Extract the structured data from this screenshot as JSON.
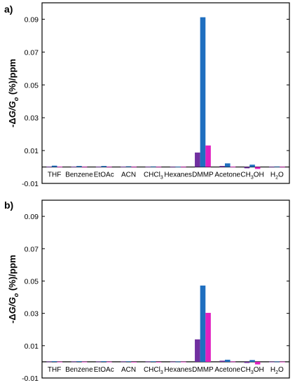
{
  "chart_data": [
    {
      "panel_label": "a)",
      "type": "bar",
      "ylabel": "-ΔG/Go (%)/ppm",
      "ylim": [
        -0.01,
        0.1
      ],
      "yticks": [
        "-0.01",
        "0.01",
        "0.03",
        "0.05",
        "0.07",
        "0.09"
      ],
      "categories": [
        "THF",
        "Benzene",
        "EtOAc",
        "ACN",
        "CHCl3",
        "Hexanes",
        "DMMP",
        "Acetone",
        "CH3OH",
        "H2O"
      ],
      "series_colors": [
        "#7030A0",
        "#1F6FC0",
        "#E020C0"
      ],
      "series": [
        {
          "values": [
            0.0002,
            0.0002,
            0.0002,
            0.0002,
            0.0002,
            0.0001,
            0.0088,
            0.0006,
            -0.0008,
            0.0001
          ]
        },
        {
          "values": [
            0.0008,
            0.0006,
            0.0006,
            0.0004,
            0.0003,
            0.0002,
            0.0912,
            0.0022,
            0.0014,
            0.0003
          ]
        },
        {
          "values": [
            0.0002,
            0.0001,
            0.0001,
            0.0001,
            0.0001,
            0.0001,
            0.0131,
            0.0002,
            -0.0012,
            0.0001
          ]
        }
      ]
    },
    {
      "panel_label": "b)",
      "type": "bar",
      "ylabel": "-ΔG/Go (%)/ppm",
      "ylim": [
        -0.01,
        0.1
      ],
      "yticks": [
        "-0.01",
        "0.01",
        "0.03",
        "0.05",
        "0.07",
        "0.09"
      ],
      "categories": [
        "THF",
        "Benzene",
        "EtOAc",
        "ACN",
        "CHCl3",
        "Hexanes",
        "DMMP",
        "Acetone",
        "CH3OH",
        "H2O"
      ],
      "series_colors": [
        "#7030A0",
        "#1F6FC0",
        "#E020C0"
      ],
      "series": [
        {
          "values": [
            0.0002,
            0.0002,
            0.0002,
            0.0002,
            0.0002,
            0.0001,
            0.0139,
            0.0007,
            -0.0007,
            0.0001
          ]
        },
        {
          "values": [
            0.0004,
            0.0004,
            0.0004,
            0.0003,
            0.0003,
            0.0002,
            0.0472,
            0.0013,
            0.0011,
            0.0002
          ]
        },
        {
          "values": [
            0.0001,
            0.0001,
            0.0001,
            -0.0002,
            -0.0003,
            0.0001,
            0.0303,
            0.0002,
            -0.0016,
            0.0001
          ]
        }
      ]
    }
  ]
}
